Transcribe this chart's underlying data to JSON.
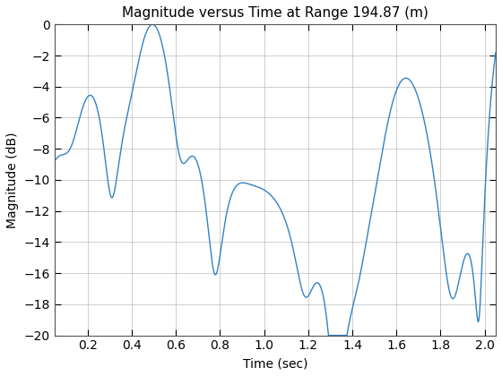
{
  "title": "Magnitude versus Time at Range 194.87 (m)",
  "xlabel": "Time (sec)",
  "ylabel": "Magnitude (dB)",
  "xlim": [
    0.05,
    2.05
  ],
  "ylim": [
    -20,
    0
  ],
  "xticks": [
    0.2,
    0.4,
    0.6,
    0.8,
    1.0,
    1.2,
    1.4,
    1.6,
    1.8,
    2.0
  ],
  "yticks": [
    0,
    -2,
    -4,
    -6,
    -8,
    -10,
    -12,
    -14,
    -16,
    -18,
    -20
  ],
  "line_color": "#3282C4",
  "line_width": 1.0,
  "background_color": "#ffffff",
  "grid_color": "#b0b0b0",
  "figsize": [
    5.6,
    4.2
  ],
  "dpi": 100,
  "title_fontsize": 11,
  "label_fontsize": 10,
  "tick_fontsize": 10
}
